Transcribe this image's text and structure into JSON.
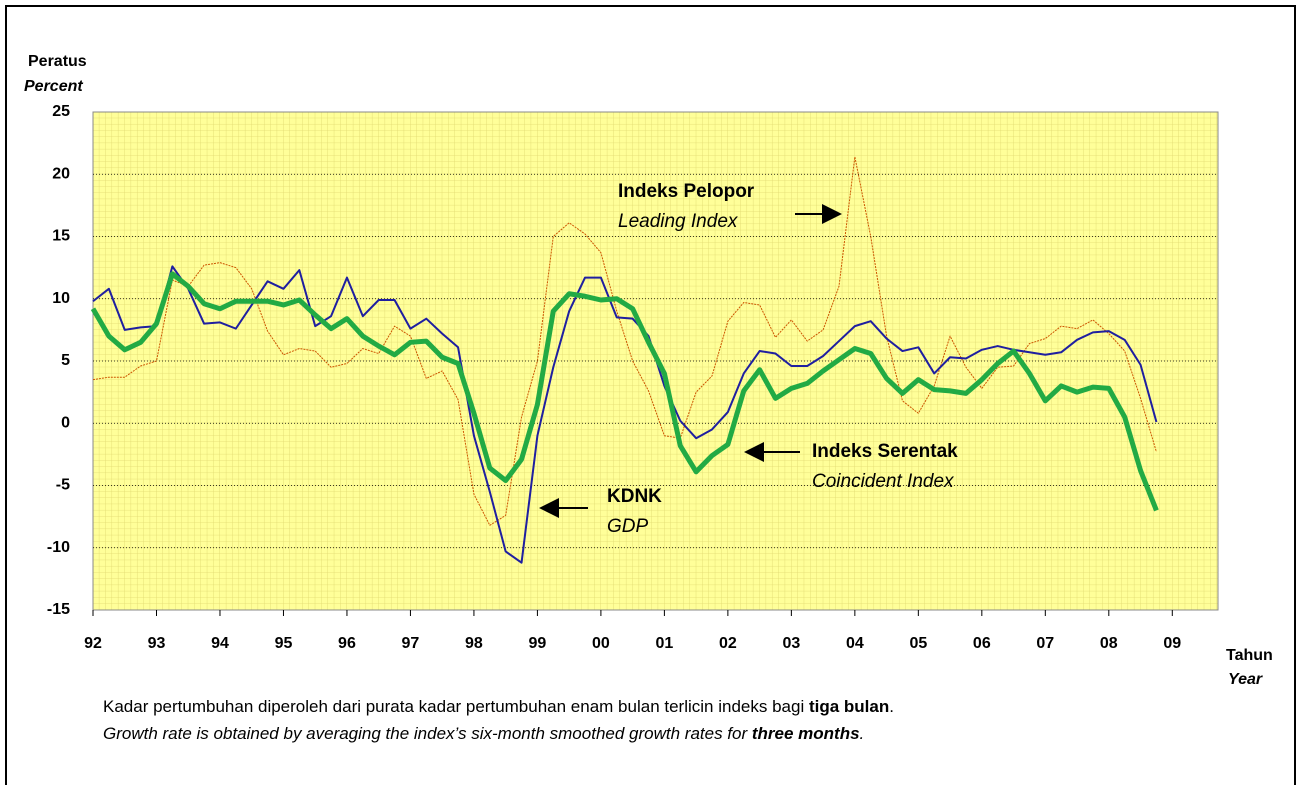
{
  "chart_data": {
    "type": "line",
    "y_label": "Peratus",
    "y_label_en": "Percent",
    "x_label": "Tahun",
    "x_label_en": "Year",
    "x": [
      1992,
      1992.25,
      1992.5,
      1992.75,
      1993,
      1993.25,
      1993.5,
      1993.75,
      1994,
      1994.25,
      1994.5,
      1994.75,
      1995,
      1995.25,
      1995.5,
      1995.75,
      1996,
      1996.25,
      1996.5,
      1996.75,
      1997,
      1997.25,
      1997.5,
      1997.75,
      1998,
      1998.25,
      1998.5,
      1998.75,
      1999,
      1999.25,
      1999.5,
      1999.75,
      2000,
      2000.25,
      2000.5,
      2000.75,
      2001,
      2001.25,
      2001.5,
      2001.75,
      2002,
      2002.25,
      2002.5,
      2002.75,
      2003,
      2003.25,
      2003.5,
      2003.75,
      2004,
      2004.25,
      2004.5,
      2004.75,
      2005,
      2005.25,
      2005.5,
      2005.75,
      2006,
      2006.25,
      2006.5,
      2006.75,
      2007,
      2007.25,
      2007.5,
      2007.75,
      2008,
      2008.25,
      2008.5,
      2008.75
    ],
    "series": [
      {
        "name": "Leading Index",
        "color": "#cc5500",
        "width": 1,
        "dash": true,
        "values": [
          3.5,
          3.7,
          3.7,
          4.6,
          5.0,
          11.5,
          11.0,
          12.7,
          12.9,
          12.5,
          10.8,
          7.4,
          5.5,
          6.0,
          5.8,
          4.5,
          4.8,
          6.0,
          5.6,
          7.8,
          7.0,
          3.6,
          4.2,
          1.9,
          -5.7,
          -8.2,
          -7.4,
          0.5,
          5.0,
          15.0,
          16.1,
          15.2,
          13.7,
          9.0,
          5.0,
          2.6,
          -1.0,
          -1.2,
          2.5,
          3.8,
          8.2,
          9.7,
          9.5,
          6.9,
          8.3,
          6.6,
          7.5,
          11.0,
          21.4,
          15.0,
          7.0,
          1.8,
          0.8,
          3.0,
          7.0,
          4.5,
          2.8,
          4.5,
          4.6,
          6.4,
          6.8,
          7.8,
          7.6,
          8.3,
          7.2,
          5.8,
          2.0,
          -2.3
        ]
      },
      {
        "name": "GDP",
        "color": "#1f1fa0",
        "width": 2,
        "dash": false,
        "values": [
          9.8,
          10.8,
          7.5,
          7.7,
          7.8,
          12.6,
          10.8,
          8.0,
          8.1,
          7.6,
          9.5,
          11.4,
          10.8,
          12.3,
          7.8,
          8.6,
          11.7,
          8.6,
          9.9,
          9.9,
          7.6,
          8.4,
          7.2,
          6.1,
          -1.0,
          -5.5,
          -10.3,
          -11.2,
          -1.0,
          4.5,
          9.0,
          11.7,
          11.7,
          8.5,
          8.4,
          7.0,
          3.0,
          0.2,
          -1.2,
          -0.5,
          0.9,
          4.0,
          5.8,
          5.6,
          4.6,
          4.6,
          5.4,
          6.6,
          7.8,
          8.2,
          6.8,
          5.8,
          6.1,
          4.0,
          5.3,
          5.2,
          5.9,
          6.2,
          5.9,
          5.7,
          5.5,
          5.7,
          6.7,
          7.3,
          7.4,
          6.7,
          4.7,
          0.1
        ]
      },
      {
        "name": "Coincident Index",
        "color": "#22aa44",
        "width": 5,
        "dash": false,
        "values": [
          9.2,
          7.0,
          5.9,
          6.5,
          8.0,
          12.0,
          11.0,
          9.6,
          9.2,
          9.8,
          9.8,
          9.8,
          9.5,
          9.9,
          8.7,
          7.6,
          8.4,
          7.0,
          6.2,
          5.5,
          6.5,
          6.6,
          5.3,
          4.8,
          0.8,
          -3.6,
          -4.6,
          -2.9,
          1.5,
          9.0,
          10.4,
          10.2,
          9.9,
          10.0,
          9.2,
          6.5,
          4.0,
          -1.8,
          -3.9,
          -2.6,
          -1.7,
          2.6,
          4.3,
          2.0,
          2.8,
          3.2,
          4.2,
          5.1,
          6.0,
          5.6,
          3.6,
          2.4,
          3.5,
          2.7,
          2.6,
          2.4,
          3.5,
          4.8,
          5.8,
          4.0,
          1.8,
          3.0,
          2.5,
          2.9,
          2.8,
          0.5,
          -3.8,
          -7.0
        ]
      }
    ],
    "annotations": [
      {
        "title": "Indeks Pelopor",
        "subtitle": "Leading Index"
      },
      {
        "title": "Indeks Serentak",
        "subtitle": "Coincident Index"
      },
      {
        "title": "KDNK",
        "subtitle": "GDP"
      }
    ],
    "xlim": [
      1992,
      2009.72
    ],
    "xticks": [
      {
        "value": 1992,
        "label": "92"
      },
      {
        "value": 1993,
        "label": "93"
      },
      {
        "value": 1994,
        "label": "94"
      },
      {
        "value": 1995,
        "label": "95"
      },
      {
        "value": 1996,
        "label": "96"
      },
      {
        "value": 1997,
        "label": "97"
      },
      {
        "value": 1998,
        "label": "98"
      },
      {
        "value": 1999,
        "label": "99"
      },
      {
        "value": 2000,
        "label": "00"
      },
      {
        "value": 2001,
        "label": "01"
      },
      {
        "value": 2002,
        "label": "02"
      },
      {
        "value": 2003,
        "label": "03"
      },
      {
        "value": 2004,
        "label": "04"
      },
      {
        "value": 2005,
        "label": "05"
      },
      {
        "value": 2006,
        "label": "06"
      },
      {
        "value": 2007,
        "label": "07"
      },
      {
        "value": 2008,
        "label": "08"
      },
      {
        "value": 2009,
        "label": "09"
      }
    ],
    "ylim": [
      -15,
      25
    ],
    "yticks": [
      -15,
      -10,
      -5,
      0,
      5,
      10,
      15,
      20,
      25
    ],
    "grid": true,
    "footnote_ms": [
      "Kadar pertumbuhan diperoleh dari purata kadar pertumbuhan enam bulan terlicin indeks bagi ",
      "tiga bulan",
      "."
    ],
    "footnote_en": [
      "Growth rate is obtained by averaging the index’s six-month smoothed growth rates for ",
      "three months",
      "."
    ]
  }
}
